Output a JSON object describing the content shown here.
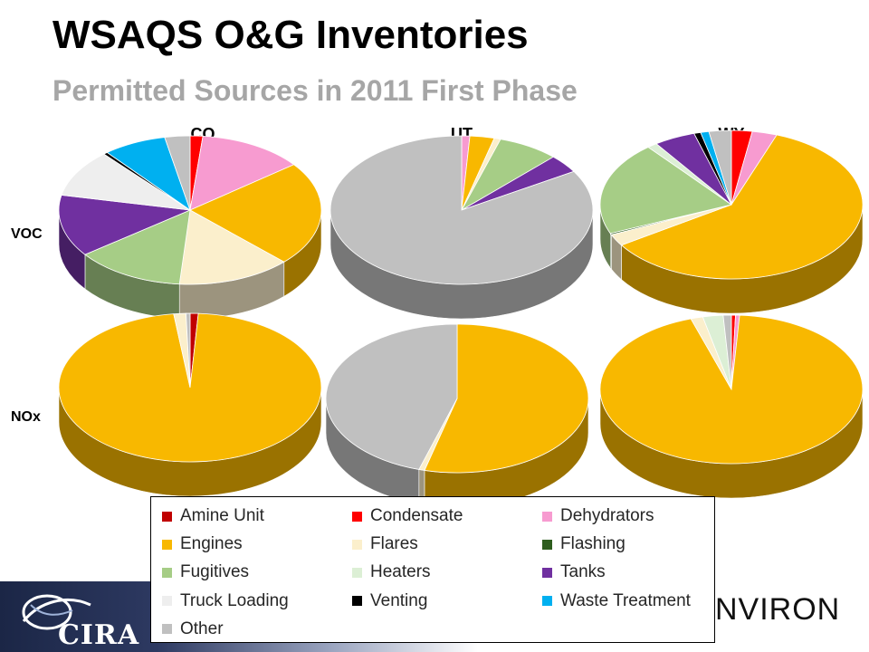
{
  "slide": {
    "title": "WSAQS O&G Inventories",
    "subtitle": "Permitted Sources in 2011 First Phase"
  },
  "column_labels": [
    "CO",
    "UT",
    "WY"
  ],
  "row_labels": [
    "VOC",
    "NOx"
  ],
  "legend": [
    {
      "name": "Amine Unit",
      "color": "#c00000"
    },
    {
      "name": "Condensate",
      "color": "#ff0000"
    },
    {
      "name": "Dehydrators",
      "color": "#f79bd0"
    },
    {
      "name": "Engines",
      "color": "#f8b800"
    },
    {
      "name": "Flares",
      "color": "#fbefcc"
    },
    {
      "name": "Flashing",
      "color": "#2e5d1e"
    },
    {
      "name": "Fugitives",
      "color": "#a6cd86"
    },
    {
      "name": "Heaters",
      "color": "#dcefd5"
    },
    {
      "name": "Tanks",
      "color": "#7030a0"
    },
    {
      "name": "Truck Loading",
      "color": "#eeeeee"
    },
    {
      "name": "Venting",
      "color": "#000000"
    },
    {
      "name": "Waste Treatment",
      "color": "#00b0f0"
    },
    {
      "name": "Other",
      "color": "#c0c0c0"
    }
  ],
  "chart_data": [
    {
      "type": "pie",
      "pollutant": "VOC",
      "state": "CO",
      "categories": [
        "Amine Unit",
        "Condensate",
        "Dehydrators",
        "Engines",
        "Flares",
        "Flashing",
        "Fugitives",
        "Heaters",
        "Tanks",
        "Truck Loading",
        "Venting",
        "Waste Treatment",
        "Other"
      ],
      "values": [
        0,
        1.5,
        12.5,
        22,
        13.5,
        0,
        13,
        0,
        13,
        10,
        0.5,
        7.5,
        3
      ]
    },
    {
      "type": "pie",
      "pollutant": "VOC",
      "state": "UT",
      "categories": [
        "Amine Unit",
        "Condensate",
        "Dehydrators",
        "Engines",
        "Flares",
        "Flashing",
        "Fugitives",
        "Heaters",
        "Tanks",
        "Truck Loading",
        "Venting",
        "Waste Treatment",
        "Other"
      ],
      "values": [
        0,
        0,
        1,
        3,
        0.8,
        0,
        7.5,
        0,
        4,
        0,
        0,
        0,
        83.7
      ]
    },
    {
      "type": "pie",
      "pollutant": "VOC",
      "state": "WY",
      "categories": [
        "Amine Unit",
        "Condensate",
        "Dehydrators",
        "Engines",
        "Flares",
        "Flashing",
        "Fugitives",
        "Heaters",
        "Tanks",
        "Truck Loading",
        "Venting",
        "Waste Treatment",
        "Other"
      ],
      "values": [
        0,
        2.5,
        3,
        59,
        2.5,
        0.3,
        20,
        1.2,
        5,
        0,
        0.8,
        1,
        2.7
      ]
    },
    {
      "type": "pie",
      "pollutant": "NOx",
      "state": "CO",
      "categories": [
        "Amine Unit",
        "Condensate",
        "Dehydrators",
        "Engines",
        "Flares",
        "Flashing",
        "Fugitives",
        "Heaters",
        "Tanks",
        "Truck Loading",
        "Venting",
        "Waste Treatment",
        "Other"
      ],
      "values": [
        1,
        0,
        0,
        97,
        1.5,
        0,
        0,
        0,
        0,
        0,
        0,
        0,
        0.5
      ]
    },
    {
      "type": "pie",
      "pollutant": "NOx",
      "state": "UT",
      "categories": [
        "Amine Unit",
        "Condensate",
        "Dehydrators",
        "Engines",
        "Flares",
        "Flashing",
        "Fugitives",
        "Heaters",
        "Tanks",
        "Truck Loading",
        "Venting",
        "Waste Treatment",
        "Other"
      ],
      "values": [
        0,
        0,
        0,
        54,
        0.7,
        0,
        0,
        0,
        0,
        0,
        0,
        0,
        45.3
      ]
    },
    {
      "type": "pie",
      "pollutant": "NOx",
      "state": "WY",
      "categories": [
        "Amine Unit",
        "Condensate",
        "Dehydrators",
        "Engines",
        "Flares",
        "Flashing",
        "Fugitives",
        "Heaters",
        "Tanks",
        "Truck Loading",
        "Venting",
        "Waste Treatment",
        "Other"
      ],
      "values": [
        0,
        0.5,
        0.5,
        94,
        1.5,
        0,
        0,
        2.5,
        0,
        0,
        0,
        0,
        1
      ]
    }
  ],
  "logos": {
    "left": "CIRA",
    "right": "NVIRON"
  }
}
